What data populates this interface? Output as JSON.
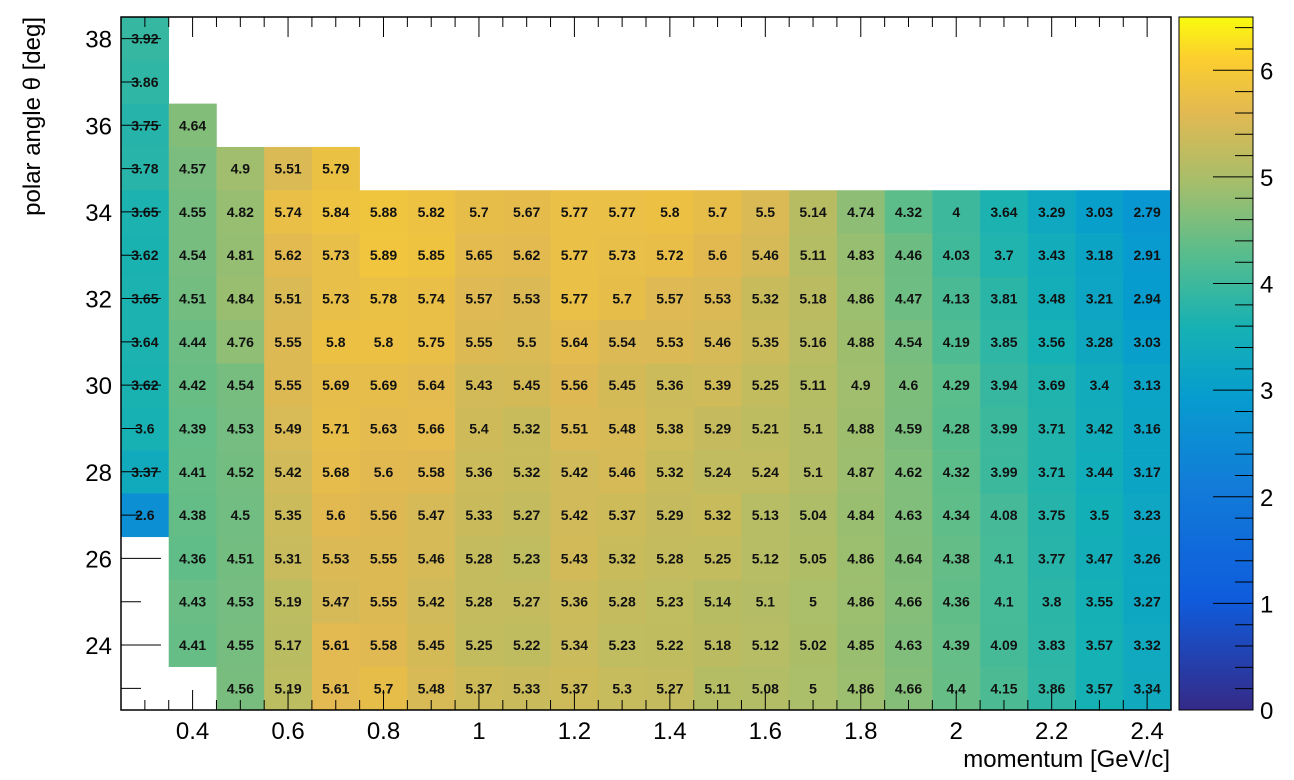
{
  "chart_data": {
    "type": "heatmap",
    "xlabel": "momentum [GeV/c]",
    "ylabel": "polar angle θ [deg]",
    "x_bin_centers": [
      0.3,
      0.4,
      0.5,
      0.6,
      0.7,
      0.8,
      0.9,
      1.0,
      1.1,
      1.2,
      1.3,
      1.4,
      1.5,
      1.6,
      1.7,
      1.8,
      1.9,
      2.0,
      2.1,
      2.2,
      2.3,
      2.4
    ],
    "y_bin_centers": [
      38,
      37,
      36,
      35,
      34,
      33,
      32,
      31,
      30,
      29,
      28,
      27,
      26,
      25,
      24,
      23
    ],
    "x_range": [
      0.25,
      2.45
    ],
    "y_range": [
      22.5,
      38.5
    ],
    "colorbar_range": [
      0,
      6.5
    ],
    "xticks": [
      "0.4",
      "0.6",
      "0.8",
      "1",
      "1.2",
      "1.4",
      "1.6",
      "1.8",
      "2",
      "2.2",
      "2.4"
    ],
    "yticks": [
      "24",
      "26",
      "28",
      "30",
      "32",
      "34",
      "36",
      "38"
    ],
    "colorbar_ticks": [
      "0",
      "1",
      "2",
      "3",
      "4",
      "5",
      "6"
    ],
    "colormap": "viridis-like (dark blue → teal → green → orange → yellow)",
    "grid": false,
    "legend": "colorbar at right",
    "rows": [
      [
        "3.92",
        null,
        null,
        null,
        null,
        null,
        null,
        null,
        null,
        null,
        null,
        null,
        null,
        null,
        null,
        null,
        null,
        null,
        null,
        null,
        null,
        null
      ],
      [
        "3.86",
        null,
        null,
        null,
        null,
        null,
        null,
        null,
        null,
        null,
        null,
        null,
        null,
        null,
        null,
        null,
        null,
        null,
        null,
        null,
        null,
        null
      ],
      [
        "3.75",
        "4.64",
        null,
        null,
        null,
        null,
        null,
        null,
        null,
        null,
        null,
        null,
        null,
        null,
        null,
        null,
        null,
        null,
        null,
        null,
        null,
        null
      ],
      [
        "3.78",
        "4.57",
        "4.9",
        "5.51",
        "5.79",
        null,
        null,
        null,
        null,
        null,
        null,
        null,
        null,
        null,
        null,
        null,
        null,
        null,
        null,
        null,
        null,
        null
      ],
      [
        "3.65",
        "4.55",
        "4.82",
        "5.74",
        "5.84",
        "5.88",
        "5.82",
        "5.7",
        "5.67",
        "5.77",
        "5.77",
        "5.8",
        "5.7",
        "5.5",
        "5.14",
        "4.74",
        "4.32",
        "4",
        "3.64",
        "3.29",
        "3.03",
        "2.79"
      ],
      [
        "3.62",
        "4.54",
        "4.81",
        "5.62",
        "5.73",
        "5.89",
        "5.85",
        "5.65",
        "5.62",
        "5.77",
        "5.73",
        "5.72",
        "5.6",
        "5.46",
        "5.11",
        "4.83",
        "4.46",
        "4.03",
        "3.7",
        "3.43",
        "3.18",
        "2.91"
      ],
      [
        "3.65",
        "4.51",
        "4.84",
        "5.51",
        "5.73",
        "5.78",
        "5.74",
        "5.57",
        "5.53",
        "5.77",
        "5.7",
        "5.57",
        "5.53",
        "5.32",
        "5.18",
        "4.86",
        "4.47",
        "4.13",
        "3.81",
        "3.48",
        "3.21",
        "2.94"
      ],
      [
        "3.64",
        "4.44",
        "4.76",
        "5.55",
        "5.8",
        "5.8",
        "5.75",
        "5.55",
        "5.5",
        "5.64",
        "5.54",
        "5.53",
        "5.46",
        "5.35",
        "5.16",
        "4.88",
        "4.54",
        "4.19",
        "3.85",
        "3.56",
        "3.28",
        "3.03"
      ],
      [
        "3.62",
        "4.42",
        "4.54",
        "5.55",
        "5.69",
        "5.69",
        "5.64",
        "5.43",
        "5.45",
        "5.56",
        "5.45",
        "5.36",
        "5.39",
        "5.25",
        "5.11",
        "4.9",
        "4.6",
        "4.29",
        "3.94",
        "3.69",
        "3.4",
        "3.13"
      ],
      [
        "3.6",
        "4.39",
        "4.53",
        "5.49",
        "5.71",
        "5.63",
        "5.66",
        "5.4",
        "5.32",
        "5.51",
        "5.48",
        "5.38",
        "5.29",
        "5.21",
        "5.1",
        "4.88",
        "4.59",
        "4.28",
        "3.99",
        "3.71",
        "3.42",
        "3.16"
      ],
      [
        "3.37",
        "4.41",
        "4.52",
        "5.42",
        "5.68",
        "5.6",
        "5.58",
        "5.36",
        "5.32",
        "5.42",
        "5.46",
        "5.32",
        "5.24",
        "5.24",
        "5.1",
        "4.87",
        "4.62",
        "4.32",
        "3.99",
        "3.71",
        "3.44",
        "3.17"
      ],
      [
        "2.6",
        "4.38",
        "4.5",
        "5.35",
        "5.6",
        "5.56",
        "5.47",
        "5.33",
        "5.27",
        "5.42",
        "5.37",
        "5.29",
        "5.32",
        "5.13",
        "5.04",
        "4.84",
        "4.63",
        "4.34",
        "4.08",
        "3.75",
        "3.5",
        "3.23"
      ],
      [
        null,
        "4.36",
        "4.51",
        "5.31",
        "5.53",
        "5.55",
        "5.46",
        "5.28",
        "5.23",
        "5.43",
        "5.32",
        "5.28",
        "5.25",
        "5.12",
        "5.05",
        "4.86",
        "4.64",
        "4.38",
        "4.1",
        "3.77",
        "3.47",
        "3.26"
      ],
      [
        null,
        "4.43",
        "4.53",
        "5.19",
        "5.47",
        "5.55",
        "5.42",
        "5.28",
        "5.27",
        "5.36",
        "5.28",
        "5.23",
        "5.14",
        "5.1",
        "5",
        "4.86",
        "4.66",
        "4.36",
        "4.1",
        "3.8",
        "3.55",
        "3.27"
      ],
      [
        null,
        "4.41",
        "4.55",
        "5.17",
        "5.61",
        "5.58",
        "5.45",
        "5.25",
        "5.22",
        "5.34",
        "5.23",
        "5.22",
        "5.18",
        "5.12",
        "5.02",
        "4.85",
        "4.63",
        "4.39",
        "4.09",
        "3.83",
        "3.57",
        "3.32"
      ],
      [
        null,
        null,
        "4.56",
        "5.19",
        "5.61",
        "5.7",
        "5.48",
        "5.37",
        "5.33",
        "5.37",
        "5.3",
        "5.27",
        "5.11",
        "5.08",
        "5",
        "4.86",
        "4.66",
        "4.4",
        "4.15",
        "3.86",
        "3.57",
        "3.34"
      ]
    ]
  }
}
